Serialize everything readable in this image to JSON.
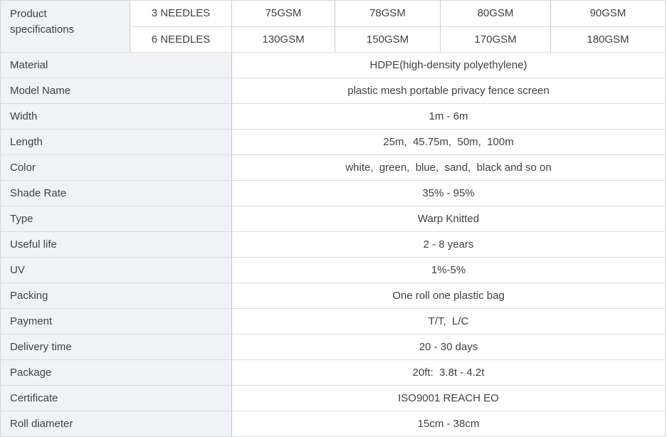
{
  "table": {
    "header": {
      "title": "Product specifications",
      "rows": [
        {
          "needles": "3 NEEDLES",
          "gsm": [
            "75GSM",
            "78GSM",
            "80GSM",
            "90GSM"
          ]
        },
        {
          "needles": "6 NEEDLES",
          "gsm": [
            "130GSM",
            "150GSM",
            "170GSM",
            "180GSM"
          ]
        }
      ]
    },
    "rows": [
      {
        "label": "Material",
        "value": "HDPE(high-density polyethylene)"
      },
      {
        "label": "Model Name",
        "value": "plastic mesh portable privacy fence screen"
      },
      {
        "label": "Width",
        "value": "1m - 6m"
      },
      {
        "label": "Length",
        "value": "25m,  45.75m,  50m,  100m"
      },
      {
        "label": "Color",
        "value": "white,  green,  blue,  sand,  black and so on"
      },
      {
        "label": "Shade Rate",
        "value": "35% - 95%"
      },
      {
        "label": "Type",
        "value": "Warp Knitted"
      },
      {
        "label": "Useful life",
        "value": "2 - 8 years"
      },
      {
        "label": "UV",
        "value": "1%-5%"
      },
      {
        "label": "Packing",
        "value": "One roll one plastic bag"
      },
      {
        "label": "Payment",
        "value": "T/T,  L/C"
      },
      {
        "label": "Delivery time",
        "value": "20 - 30 days"
      },
      {
        "label": "Package",
        "value": "20ft:  3.8t - 4.2t"
      },
      {
        "label": "Certificate",
        "value": "ISO9001 REACH EO"
      },
      {
        "label": "Roll diameter",
        "value": "15cm - 38cm"
      }
    ],
    "colors": {
      "label_background": "#f1f2f5",
      "row_border": "#dcdde0",
      "column_border": "#c9cbcf",
      "text": "#3f4145"
    }
  }
}
